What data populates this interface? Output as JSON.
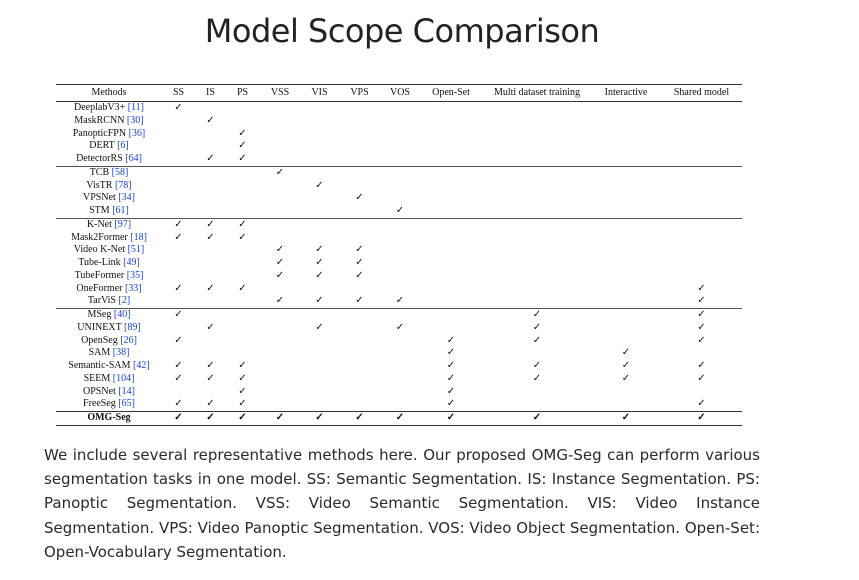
{
  "title": "Model Scope Comparison",
  "table": {
    "columns": [
      "Methods",
      "SS",
      "IS",
      "PS",
      "VSS",
      "VIS",
      "VPS",
      "VOS",
      "Open-Set",
      "Multi dataset training",
      "Interactive",
      "Shared model"
    ],
    "check": "✓",
    "groups": [
      [
        {
          "name": "DeeplabV3+",
          "ref": "[11]",
          "checks": [
            1,
            0,
            0,
            0,
            0,
            0,
            0,
            0,
            0,
            0,
            0
          ]
        },
        {
          "name": "MaskRCNN",
          "ref": "[30]",
          "checks": [
            0,
            1,
            0,
            0,
            0,
            0,
            0,
            0,
            0,
            0,
            0
          ]
        },
        {
          "name": "PanopticFPN",
          "ref": "[36]",
          "checks": [
            0,
            0,
            1,
            0,
            0,
            0,
            0,
            0,
            0,
            0,
            0
          ]
        },
        {
          "name": "DERT",
          "ref": "[6]",
          "checks": [
            0,
            0,
            1,
            0,
            0,
            0,
            0,
            0,
            0,
            0,
            0
          ]
        },
        {
          "name": "DetectorRS",
          "ref": "[64]",
          "checks": [
            0,
            1,
            1,
            0,
            0,
            0,
            0,
            0,
            0,
            0,
            0
          ]
        }
      ],
      [
        {
          "name": "TCB",
          "ref": "[58]",
          "checks": [
            0,
            0,
            0,
            1,
            0,
            0,
            0,
            0,
            0,
            0,
            0
          ]
        },
        {
          "name": "VisTR",
          "ref": "[78]",
          "checks": [
            0,
            0,
            0,
            0,
            1,
            0,
            0,
            0,
            0,
            0,
            0
          ]
        },
        {
          "name": "VPSNet",
          "ref": "[34]",
          "checks": [
            0,
            0,
            0,
            0,
            0,
            1,
            0,
            0,
            0,
            0,
            0
          ]
        },
        {
          "name": "STM",
          "ref": "[61]",
          "checks": [
            0,
            0,
            0,
            0,
            0,
            0,
            1,
            0,
            0,
            0,
            0
          ]
        }
      ],
      [
        {
          "name": "K-Net",
          "ref": "[97]",
          "checks": [
            1,
            1,
            1,
            0,
            0,
            0,
            0,
            0,
            0,
            0,
            0
          ]
        },
        {
          "name": "Mask2Former",
          "ref": "[18]",
          "checks": [
            1,
            1,
            1,
            0,
            0,
            0,
            0,
            0,
            0,
            0,
            0
          ]
        },
        {
          "name": "Video K-Net",
          "ref": "[51]",
          "checks": [
            0,
            0,
            0,
            1,
            1,
            1,
            0,
            0,
            0,
            0,
            0
          ]
        },
        {
          "name": "Tube-Link",
          "ref": "[49]",
          "checks": [
            0,
            0,
            0,
            1,
            1,
            1,
            0,
            0,
            0,
            0,
            0
          ]
        },
        {
          "name": "TubeFormer",
          "ref": "[35]",
          "checks": [
            0,
            0,
            0,
            1,
            1,
            1,
            0,
            0,
            0,
            0,
            0
          ]
        },
        {
          "name": "OneFormer",
          "ref": "[33]",
          "checks": [
            1,
            1,
            1,
            0,
            0,
            0,
            0,
            0,
            0,
            0,
            1
          ]
        },
        {
          "name": "TarViS",
          "ref": "[2]",
          "checks": [
            0,
            0,
            0,
            1,
            1,
            1,
            1,
            0,
            0,
            0,
            1
          ]
        }
      ],
      [
        {
          "name": "MSeg",
          "ref": "[40]",
          "checks": [
            1,
            0,
            0,
            0,
            0,
            0,
            0,
            0,
            1,
            0,
            1
          ]
        },
        {
          "name": "UNINEXT",
          "ref": "[89]",
          "checks": [
            0,
            1,
            0,
            0,
            1,
            0,
            1,
            0,
            1,
            0,
            1
          ]
        },
        {
          "name": "OpenSeg",
          "ref": "[26]",
          "checks": [
            1,
            0,
            0,
            0,
            0,
            0,
            0,
            1,
            1,
            0,
            1
          ]
        },
        {
          "name": "SAM",
          "ref": "[38]",
          "checks": [
            0,
            0,
            0,
            0,
            0,
            0,
            0,
            1,
            0,
            1,
            0
          ]
        },
        {
          "name": "Semantic-SAM",
          "ref": "[42]",
          "checks": [
            1,
            1,
            1,
            0,
            0,
            0,
            0,
            1,
            1,
            1,
            1
          ]
        },
        {
          "name": "SEEM",
          "ref": "[104]",
          "checks": [
            1,
            1,
            1,
            0,
            0,
            0,
            0,
            1,
            1,
            1,
            1
          ]
        },
        {
          "name": "OPSNet",
          "ref": "[14]",
          "checks": [
            0,
            0,
            1,
            0,
            0,
            0,
            0,
            1,
            0,
            0,
            0
          ]
        },
        {
          "name": "FreeSeg",
          "ref": "[65]",
          "checks": [
            1,
            1,
            1,
            0,
            0,
            0,
            0,
            1,
            0,
            0,
            1
          ]
        }
      ]
    ],
    "final": {
      "name": "OMG-Seg",
      "ref": "",
      "checks": [
        1,
        1,
        1,
        1,
        1,
        1,
        1,
        1,
        1,
        1,
        1
      ]
    }
  },
  "caption": "We include several representative methods here. Our proposed OMG-Seg can perform various segmentation tasks in one model. SS: Semantic Segmentation. IS: Instance Segmentation. PS: Panoptic Segmentation. VSS: Video Semantic Segmentation. VIS: Video Instance Segmentation. VPS: Video Panoptic Segmentation. VOS: Video Object Segmentation. Open-Set: Open-Vocabulary Segmentation."
}
